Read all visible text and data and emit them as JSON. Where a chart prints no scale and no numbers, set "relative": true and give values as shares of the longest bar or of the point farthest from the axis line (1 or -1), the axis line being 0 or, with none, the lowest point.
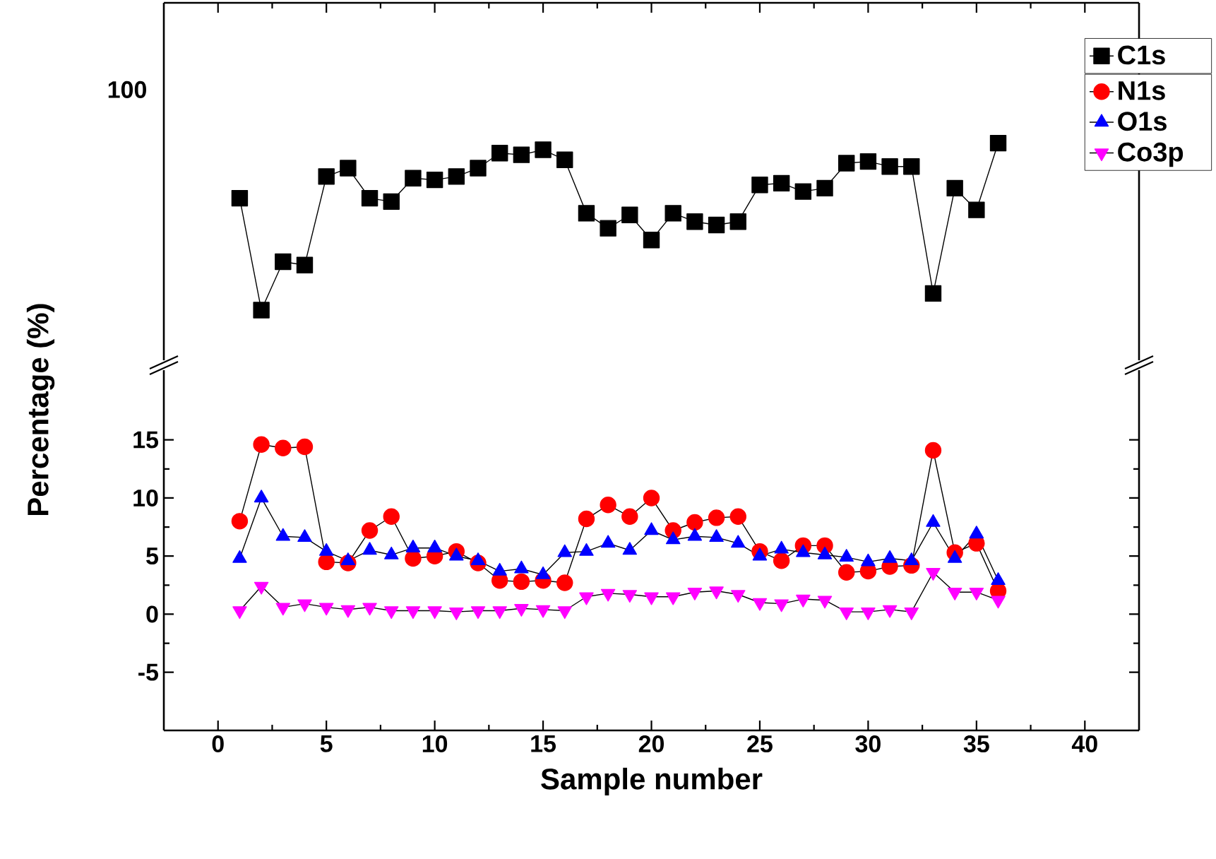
{
  "chart_data": [
    {
      "type": "line",
      "x": [
        1,
        2,
        3,
        4,
        5,
        6,
        7,
        8,
        9,
        10,
        11,
        12,
        13,
        14,
        15,
        16,
        17,
        18,
        19,
        20,
        21,
        22,
        23,
        24,
        25,
        26,
        27,
        28,
        29,
        30,
        31,
        32,
        33,
        34,
        35,
        36
      ],
      "series": [
        {
          "name": "C1s",
          "color": "#000000",
          "marker": "square",
          "values": [
            0.67,
            0,
            0.29,
            0.27,
            0.8,
            0.85,
            0.67,
            0.65,
            0.79,
            0.78,
            0.8,
            0.85,
            0.94,
            0.93,
            0.96,
            0.9,
            0.58,
            0.49,
            0.57,
            0.42,
            0.58,
            0.53,
            0.51,
            0.53,
            0.75,
            0.76,
            0.71,
            0.73,
            0.88,
            0.89,
            0.86,
            0.86,
            0.1,
            0.73,
            0.6,
            1
          ]
        }
      ],
      "relative": true,
      "annotations": [
        "100"
      ],
      "xlim": [
        -2.5,
        42.5
      ],
      "xticks": [
        0,
        5,
        10,
        15,
        20,
        25,
        30,
        35,
        40
      ],
      "tick_labels": "y",
      "legend": "top right"
    },
    {
      "type": "line",
      "x": [
        1,
        2,
        3,
        4,
        5,
        6,
        7,
        8,
        9,
        10,
        11,
        12,
        13,
        14,
        15,
        16,
        17,
        18,
        19,
        20,
        21,
        22,
        23,
        24,
        25,
        26,
        27,
        28,
        29,
        30,
        31,
        32,
        33,
        34,
        35,
        36
      ],
      "xlabel": "Sample number",
      "ylabel": "Percentage (%)",
      "series": [
        {
          "name": "N1s",
          "color": "#ff0000",
          "marker": "circle",
          "values": [
            8.0,
            14.6,
            14.3,
            14.4,
            4.5,
            4.4,
            7.2,
            8.4,
            4.8,
            5.0,
            5.4,
            4.4,
            2.9,
            2.8,
            2.9,
            2.7,
            8.2,
            9.4,
            8.4,
            10.0,
            7.2,
            7.9,
            8.3,
            8.4,
            5.4,
            4.6,
            5.9,
            5.9,
            3.6,
            3.7,
            4.1,
            4.2,
            14.1,
            5.3,
            6.1,
            2.0
          ]
        },
        {
          "name": "O1s",
          "color": "#0000ff",
          "marker": "triangle",
          "values": [
            4.8,
            10.0,
            6.7,
            6.6,
            5.4,
            4.6,
            5.5,
            5.1,
            5.7,
            5.7,
            5.0,
            4.6,
            3.7,
            3.9,
            3.4,
            5.3,
            5.4,
            6.1,
            5.5,
            7.2,
            6.4,
            6.7,
            6.6,
            6.1,
            5.0,
            5.6,
            5.3,
            5.1,
            4.9,
            4.5,
            4.8,
            4.6,
            7.9,
            4.8,
            6.9,
            2.9
          ]
        },
        {
          "name": "Co3p",
          "color": "#ff00ff",
          "marker": "triangle-down",
          "values": [
            0.3,
            2.4,
            0.6,
            0.9,
            0.6,
            0.4,
            0.6,
            0.3,
            0.3,
            0.3,
            0.2,
            0.3,
            0.3,
            0.5,
            0.4,
            0.3,
            1.5,
            1.8,
            1.7,
            1.5,
            1.5,
            1.9,
            2.0,
            1.7,
            1.0,
            0.9,
            1.3,
            1.2,
            0.2,
            0.2,
            0.4,
            0.2,
            3.6,
            1.9,
            1.9,
            1.2
          ]
        }
      ],
      "xlim": [
        -2.5,
        42.5
      ],
      "xticks": [
        0,
        5,
        10,
        15,
        20,
        25,
        30,
        35,
        40
      ],
      "ylim": [
        -10,
        21
      ],
      "yticks": [
        -5,
        0,
        5,
        10,
        15
      ],
      "legend": "top right"
    }
  ]
}
